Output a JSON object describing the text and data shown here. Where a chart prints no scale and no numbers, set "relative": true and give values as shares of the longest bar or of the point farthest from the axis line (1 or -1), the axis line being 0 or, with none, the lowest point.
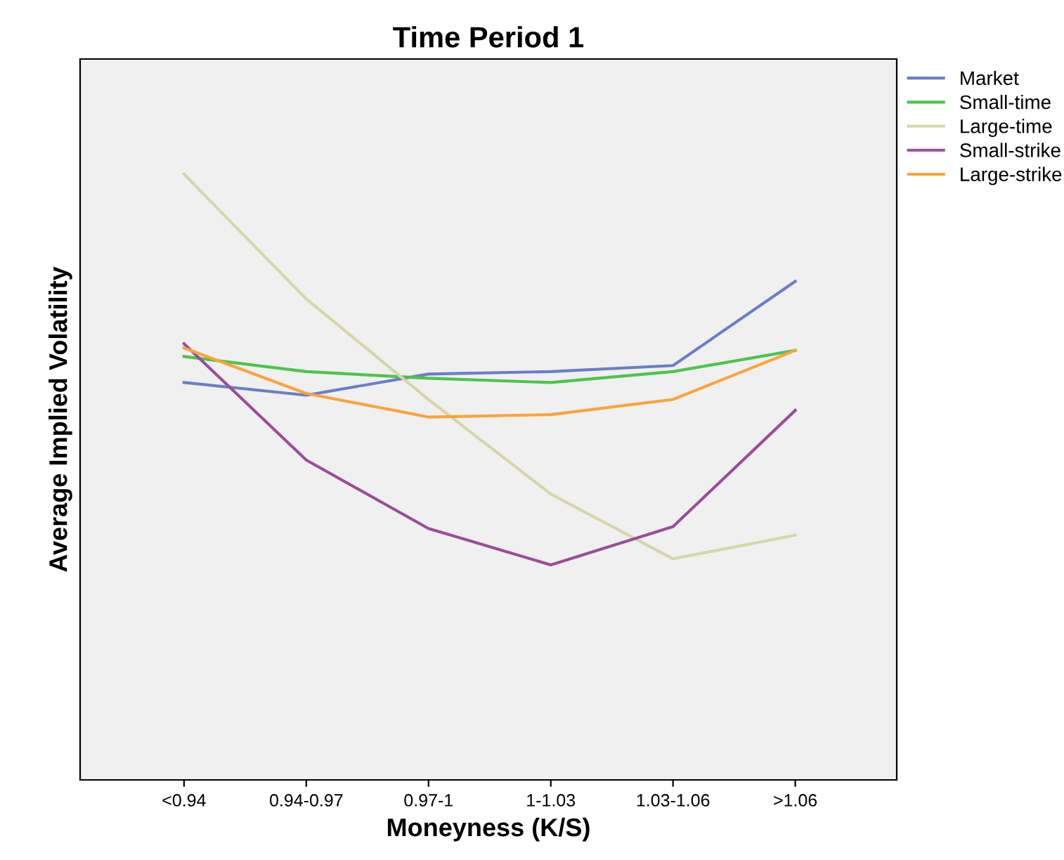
{
  "chart_data": {
    "type": "line",
    "title": "Time Period 1",
    "xlabel": "Moneyness (K/S)",
    "ylabel": "Average Implied Volatility",
    "categories": [
      "<0.94",
      "0.94-0.97",
      "0.97-1",
      "1-1.03",
      "1.03-1.06",
      ">1.06"
    ],
    "relative": true,
    "grid": false,
    "legend": "top right",
    "marker": "none",
    "line_style": "solid",
    "series": [
      {
        "name": "Market",
        "color": "#6a7fc6",
        "values": [
          0.656,
          0.635,
          0.67,
          0.674,
          0.684,
          0.823
        ]
      },
      {
        "name": "Small-time",
        "color": "#4cc44c",
        "values": [
          0.699,
          0.674,
          0.663,
          0.656,
          0.674,
          0.709
        ]
      },
      {
        "name": "Large-time",
        "color": "#d6d6a8",
        "values": [
          1,
          0.794,
          0.628,
          0.472,
          0.365,
          0.404
        ]
      },
      {
        "name": "Small-strike",
        "color": "#9b4d9b",
        "values": [
          0.72,
          0.528,
          0.415,
          0.355,
          0.418,
          0.61
        ]
      },
      {
        "name": "Large-strike",
        "color": "#f9a43a",
        "values": [
          0.713,
          0.638,
          0.599,
          0.603,
          0.628,
          0.709
        ]
      }
    ]
  }
}
